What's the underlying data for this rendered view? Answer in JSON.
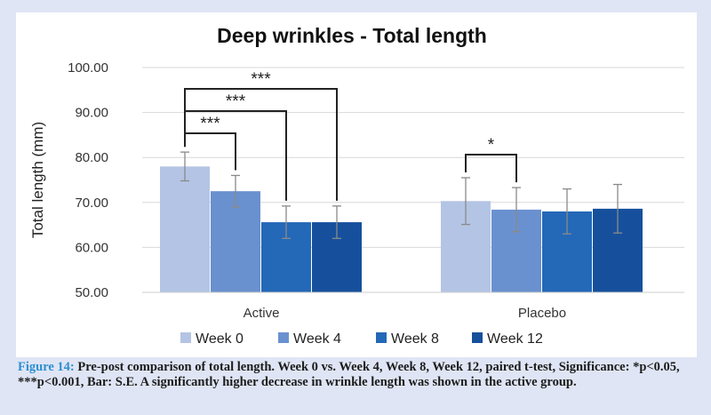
{
  "chart_data": {
    "type": "bar",
    "title": "Deep wrinkles - Total length",
    "ylabel": "Total length (mm)",
    "xlabel": "",
    "ylim": [
      50,
      100
    ],
    "yticks": [
      "50.00",
      "60.00",
      "70.00",
      "80.00",
      "90.00",
      "100.00"
    ],
    "grid": true,
    "legend_position": "bottom",
    "categories": [
      "Active",
      "Placebo"
    ],
    "series": [
      {
        "name": "Week 0",
        "color": "#b4c4e4",
        "values": [
          78.0,
          70.3
        ],
        "errors": [
          3.2,
          5.2
        ]
      },
      {
        "name": "Week 4",
        "color": "#6a91cf",
        "values": [
          72.5,
          68.4
        ],
        "errors": [
          3.5,
          4.9
        ]
      },
      {
        "name": "Week 8",
        "color": "#2468b8",
        "values": [
          65.6,
          68.0
        ],
        "errors": [
          3.6,
          5.0
        ]
      },
      {
        "name": "Week 12",
        "color": "#16509c",
        "values": [
          65.6,
          68.6
        ],
        "errors": [
          3.6,
          5.4
        ]
      }
    ],
    "significance": [
      {
        "category": 0,
        "from": 0,
        "to": 1,
        "label": "***"
      },
      {
        "category": 0,
        "from": 0,
        "to": 2,
        "label": "***"
      },
      {
        "category": 0,
        "from": 0,
        "to": 3,
        "label": "***"
      },
      {
        "category": 1,
        "from": 0,
        "to": 1,
        "label": "*"
      }
    ]
  },
  "caption": {
    "label": "Figure 14:",
    "text": " Pre-post comparison of total length. Week 0 vs. Week 4, Week 8, Week 12, paired t-test, Significance: *p<0.05, ***p<0.001, Bar: S.E. A significantly higher decrease in wrinkle length was shown in the active group."
  }
}
